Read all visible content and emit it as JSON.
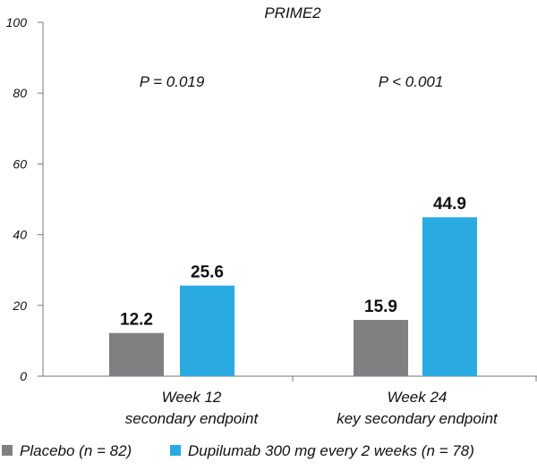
{
  "chart_data": {
    "type": "bar",
    "title": "PRIME2",
    "categories": [
      [
        "Week 12",
        "secondary endpoint"
      ],
      [
        "Week 24",
        "key secondary endpoint"
      ]
    ],
    "series": [
      {
        "name": "Placebo (n = 82)",
        "color": "#808083",
        "values": [
          12.2,
          15.9
        ],
        "labels": [
          "12.2",
          "15.9"
        ]
      },
      {
        "name": "Dupilumab 300 mg every 2 weeks (n = 78)",
        "color": "#29abe2",
        "values": [
          25.6,
          44.9
        ],
        "labels": [
          "25.6",
          "44.9"
        ]
      }
    ],
    "annotations": [
      "P = 0.019",
      "P < 0.001"
    ],
    "yticks": [
      "0",
      "20",
      "40",
      "60",
      "80",
      "100"
    ],
    "ylim": [
      0,
      100
    ],
    "xlabel": "",
    "ylabel": "",
    "grid": false,
    "legend_position": "bottom"
  }
}
